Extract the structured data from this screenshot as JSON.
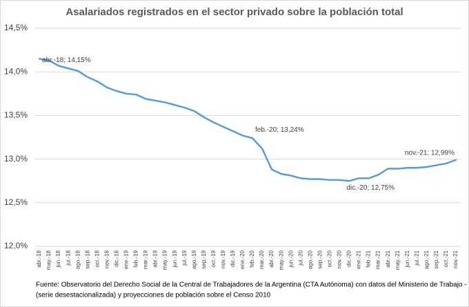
{
  "chart_data": {
    "type": "line",
    "title": "Asalariados registrados en el sector privado sobre la población total",
    "categories": [
      "abr.-18",
      "may.-18",
      "jun.-18",
      "jul.-18",
      "ago.-18",
      "sep.-18",
      "oct.-18",
      "nov.-18",
      "dic.-18",
      "ene.-19",
      "feb.-19",
      "mar.-19",
      "abr.-19",
      "may.-19",
      "jun.-19",
      "jul.-19",
      "ago.-19",
      "sep.-19",
      "oct.-19",
      "nov.-19",
      "dic.-19",
      "ene.-20",
      "feb.-20",
      "mar.-20",
      "abr.-20",
      "may.-20",
      "jun.-20",
      "jul.-20",
      "ago.-20",
      "sep.-20",
      "oct.-20",
      "nov.-20",
      "dic.-20",
      "ene.-21",
      "feb.-21",
      "mar.-21",
      "abr.-21",
      "may.-21",
      "jun.-21",
      "jul.-21",
      "ago.-21",
      "sep.-21",
      "oct.-21",
      "nov.-21"
    ],
    "values": [
      14.15,
      14.13,
      14.07,
      14.04,
      14.01,
      13.94,
      13.89,
      13.82,
      13.78,
      13.75,
      13.74,
      13.69,
      13.67,
      13.65,
      13.62,
      13.59,
      13.55,
      13.48,
      13.42,
      13.37,
      13.32,
      13.27,
      13.24,
      13.12,
      12.88,
      12.83,
      12.81,
      12.78,
      12.77,
      12.77,
      12.76,
      12.76,
      12.75,
      12.78,
      12.78,
      12.82,
      12.89,
      12.89,
      12.9,
      12.9,
      12.91,
      12.93,
      12.95,
      12.99
    ],
    "value_labels": [
      "abr.-18; 14,15%",
      null,
      null,
      null,
      null,
      null,
      null,
      null,
      null,
      null,
      null,
      null,
      null,
      null,
      null,
      null,
      null,
      null,
      null,
      null,
      null,
      null,
      "feb.-20; 13,24%",
      null,
      null,
      null,
      null,
      null,
      null,
      null,
      null,
      null,
      "dic.-20; 12,75%",
      null,
      null,
      null,
      null,
      null,
      null,
      null,
      null,
      null,
      null,
      "nov.-21; 12,99%"
    ],
    "color": "#5b9bd5",
    "ylim": [
      12,
      14.5
    ],
    "yticks": [
      {
        "value": 12,
        "label": "12,0%"
      },
      {
        "value": 12.5,
        "label": "12,5%"
      },
      {
        "value": 13,
        "label": "13,0%"
      },
      {
        "value": 13.5,
        "label": "13,5%"
      },
      {
        "value": 14,
        "label": "14,0%"
      },
      {
        "value": 14.5,
        "label": "14,5%"
      }
    ],
    "grid": true,
    "source": [
      "Fuente: Observatorio del Derecho Social de la Central de Trabajadores de la Argentina (CTA Autónoma) con datos del Ministerio de Trabajo - SIPA",
      "(serie desestacionalizada) y proyecciones de población sobre el Censo 2010"
    ]
  }
}
